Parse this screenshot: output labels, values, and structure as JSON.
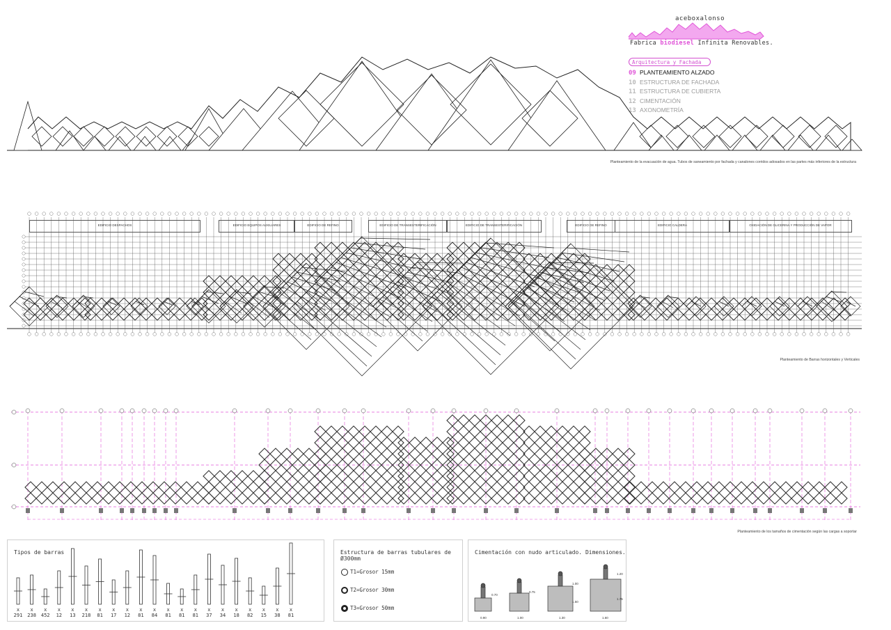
{
  "header": {
    "brand": "aceboxalonso",
    "tagline_pre": "Fabrica ",
    "tagline_highlight": "biodiesel",
    "tagline_post": " Infinita Renovables.",
    "section_label": "Arquitectura y Fachada",
    "accent_color": "#e055d8"
  },
  "menu": [
    {
      "num": "09",
      "label": "PLANTEAMIENTO ALZADO",
      "active": true
    },
    {
      "num": "10",
      "label": "ESTRUCTURA DE FACHADA",
      "active": false
    },
    {
      "num": "11",
      "label": "ESTRUCTURA DE CUBIERTA",
      "active": false
    },
    {
      "num": "12",
      "label": "CIMENTACIÓN",
      "active": false
    },
    {
      "num": "13",
      "label": "AXONOMETRÍA",
      "active": false
    }
  ],
  "captions": {
    "elevation": "Planteamiento de la evacuación de agua. Tubos de saneamiento por fachada y canalones corridos adosados en las partes más inferiores de la estructura",
    "bars": "Planteamiento de Barras horizontales y Verticales",
    "foundation": "Planteamiento de los tamaños de cimentación según las cargas a soportar"
  },
  "spaces": [
    {
      "label": "EDIFICIO DESPACHOS"
    },
    {
      "label": "EDIFICIO EQUIPOS AUXILIARES"
    },
    {
      "label": "EDIFICIO DE REFINO"
    },
    {
      "label": "EDIFICIO DE TRANSESTERIFICACIÓN"
    },
    {
      "label": "EDIFICIO DE TRANSESTERIFICACIÓN"
    },
    {
      "label": "EDIFICIO DE REFINO"
    },
    {
      "label": "EDIFICIO CALDERA"
    },
    {
      "label": "OXIDACIÓN DE GLICERINA Y PRODUCCIÓN DE VAPOR"
    }
  ],
  "bar_types": {
    "title": "Tipos de barras",
    "counts": [
      "291",
      "238",
      "452",
      "12",
      "13",
      "218",
      "81",
      "17",
      "12",
      "81",
      "84",
      "81",
      "81",
      "81",
      "37",
      "34",
      "18",
      "82",
      "15",
      "38",
      "81"
    ],
    "multiplier": "x"
  },
  "tube_structure": {
    "title": "Estructura de barras tubulares de Ø300mm",
    "items": [
      {
        "label": "T1=Grosor 15mm",
        "thickness": 1
      },
      {
        "label": "T2=Grosor 30mm",
        "thickness": 2
      },
      {
        "label": "T3=Grosor 50mm",
        "thickness": 3
      }
    ]
  },
  "foundation": {
    "title": "Cimentación con nudo articulado. Dimensiones.",
    "dims": [
      "0.90",
      "1.00",
      "1.30",
      "1.60",
      "0.70",
      "0.75",
      "1.00",
      "1.20",
      "1.50",
      "1.75"
    ]
  }
}
